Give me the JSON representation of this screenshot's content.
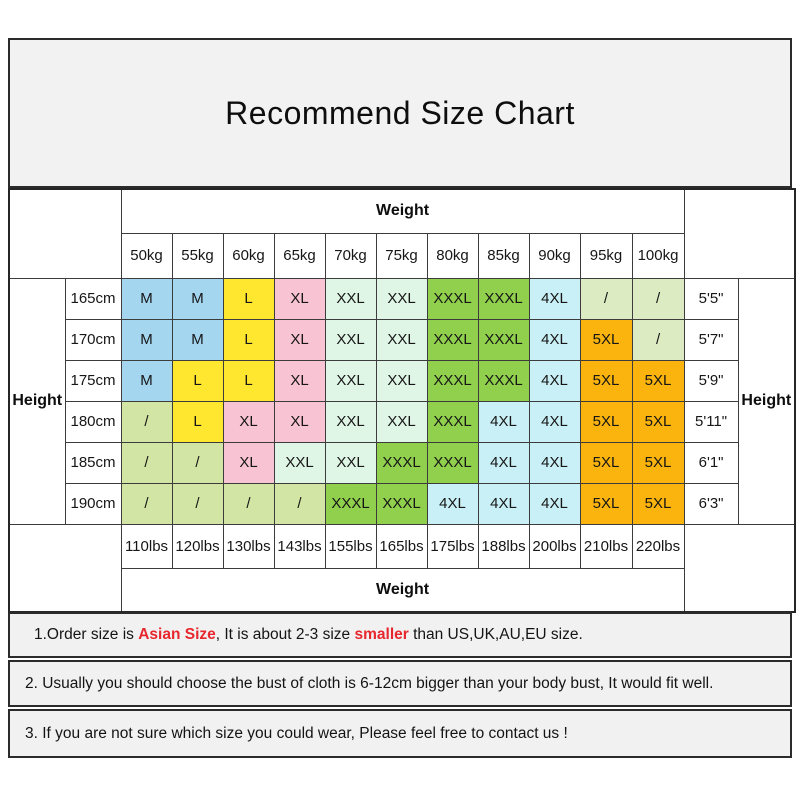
{
  "title": "Recommend Size Chart",
  "palette": {
    "blue": "#a4d6f0",
    "yellow": "#ffe72f",
    "pink": "#f8c3d3",
    "mint": "#dff5e6",
    "green": "#90d04d",
    "cyan": "#c9f0f6",
    "orange": "#fab40d",
    "slash_light": "#dcebc1",
    "slash_olive": "#d3e5a4",
    "box_gray": "#f2f2f2",
    "note_gray": "#f1f1f1",
    "accent_red": "#e8262d"
  },
  "chart_data": {
    "type": "table",
    "title": "Recommend Size Chart",
    "weight_header_top": "Weight",
    "weight_header_bottom": "Weight",
    "height_label_left": "Height",
    "height_label_right": "Height",
    "weights_kg": [
      "50kg",
      "55kg",
      "60kg",
      "65kg",
      "70kg",
      "75kg",
      "80kg",
      "85kg",
      "90kg",
      "95kg",
      "100kg"
    ],
    "weights_lbs": [
      "110lbs",
      "120lbs",
      "130lbs",
      "143lbs",
      "155lbs",
      "165lbs",
      "175lbs",
      "188lbs",
      "200lbs",
      "210lbs",
      "220lbs"
    ],
    "rows": [
      {
        "height_cm": "165cm",
        "height_ft": "5'5\"",
        "sizes": [
          "M",
          "M",
          "L",
          "XL",
          "XXL",
          "XXL",
          "XXXL",
          "XXXL",
          "4XL",
          "/",
          "/"
        ],
        "colors": [
          "blue",
          "blue",
          "yellow",
          "pink",
          "mint",
          "mint",
          "green",
          "green",
          "cyan",
          "slash_light",
          "slash_light"
        ]
      },
      {
        "height_cm": "170cm",
        "height_ft": "5'7\"",
        "sizes": [
          "M",
          "M",
          "L",
          "XL",
          "XXL",
          "XXL",
          "XXXL",
          "XXXL",
          "4XL",
          "5XL",
          "/"
        ],
        "colors": [
          "blue",
          "blue",
          "yellow",
          "pink",
          "mint",
          "mint",
          "green",
          "green",
          "cyan",
          "orange",
          "slash_light"
        ]
      },
      {
        "height_cm": "175cm",
        "height_ft": "5'9\"",
        "sizes": [
          "M",
          "L",
          "L",
          "XL",
          "XXL",
          "XXL",
          "XXXL",
          "XXXL",
          "4XL",
          "5XL",
          "5XL"
        ],
        "colors": [
          "blue",
          "yellow",
          "yellow",
          "pink",
          "mint",
          "mint",
          "green",
          "green",
          "cyan",
          "orange",
          "orange"
        ]
      },
      {
        "height_cm": "180cm",
        "height_ft": "5'11\"",
        "sizes": [
          "/",
          "L",
          "XL",
          "XL",
          "XXL",
          "XXL",
          "XXXL",
          "4XL",
          "4XL",
          "5XL",
          "5XL"
        ],
        "colors": [
          "slash_olive",
          "yellow",
          "pink",
          "pink",
          "mint",
          "mint",
          "green",
          "cyan",
          "cyan",
          "orange",
          "orange"
        ]
      },
      {
        "height_cm": "185cm",
        "height_ft": "6'1\"",
        "sizes": [
          "/",
          "/",
          "XL",
          "XXL",
          "XXL",
          "XXXL",
          "XXXL",
          "4XL",
          "4XL",
          "5XL",
          "5XL"
        ],
        "colors": [
          "slash_olive",
          "slash_olive",
          "pink",
          "mint",
          "mint",
          "green",
          "green",
          "cyan",
          "cyan",
          "orange",
          "orange"
        ]
      },
      {
        "height_cm": "190cm",
        "height_ft": "6'3\"",
        "sizes": [
          "/",
          "/",
          "/",
          "/",
          "XXXL",
          "XXXL",
          "4XL",
          "4XL",
          "4XL",
          "5XL",
          "5XL"
        ],
        "colors": [
          "slash_olive",
          "slash_olive",
          "slash_olive",
          "slash_olive",
          "green",
          "green",
          "cyan",
          "cyan",
          "cyan",
          "orange",
          "orange"
        ]
      }
    ]
  },
  "notes": {
    "note1": {
      "prefix": "1.Order size is ",
      "highlight1": "Asian Size",
      "middle": ", It is about 2-3 size ",
      "highlight2": "smaller",
      "suffix": " than US,UK,AU,EU size."
    },
    "note2": "2. Usually you should choose the bust of cloth is 6-12cm bigger than your body bust, It would fit well.",
    "note3": "3. If you are not sure which size you could wear, Please feel free to contact us !"
  }
}
